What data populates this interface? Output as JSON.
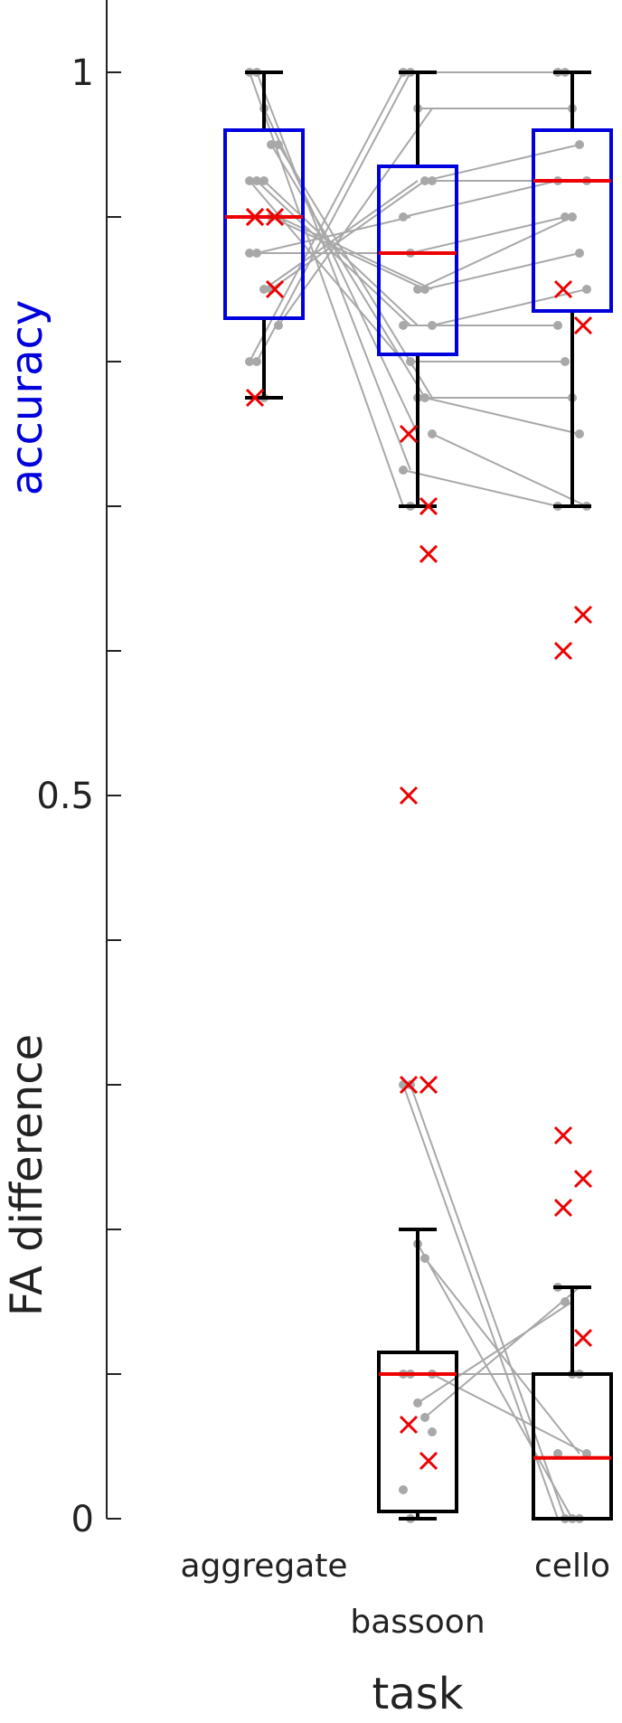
{
  "chart_data": {
    "type": "box",
    "xlabel": "task",
    "ylabel_top": "accuracy",
    "ylabel_bottom": "FA difference",
    "categories": [
      "aggregate",
      "bassoon",
      "cello"
    ],
    "ylim": [
      0,
      1.05
    ],
    "yticks": [
      0,
      0.1,
      0.2,
      0.3,
      0.4,
      0.5,
      0.6,
      0.7,
      0.8,
      0.9,
      1
    ],
    "ytick_labels": [
      "0",
      "",
      "",
      "",
      "",
      "0.5",
      "",
      "",
      "",
      "",
      "1"
    ],
    "colors": {
      "accuracy": "#0000dd",
      "fa": "#000000",
      "median": "#ee0000",
      "marker": "#ee0000",
      "point": "#a8a8a8",
      "line": "#a8a8a8"
    },
    "accuracy_boxes": [
      {
        "category": "aggregate",
        "whisker_low": 0.775,
        "q1": 0.83,
        "median": 0.9,
        "q3": 0.96,
        "whisker_high": 1.0
      },
      {
        "category": "bassoon",
        "whisker_low": 0.7,
        "q1": 0.805,
        "median": 0.875,
        "q3": 0.935,
        "whisker_high": 1.0
      },
      {
        "category": "cello",
        "whisker_low": 0.7,
        "q1": 0.835,
        "median": 0.925,
        "q3": 0.96,
        "whisker_high": 1.0
      }
    ],
    "fa_boxes": [
      {
        "category": "bassoon",
        "whisker_low": 0.0,
        "q1": 0.005,
        "median": 0.1,
        "q3": 0.115,
        "whisker_high": 0.2
      },
      {
        "category": "cello",
        "whisker_low": 0.0,
        "q1": 0.0,
        "median": 0.042,
        "q3": 0.1,
        "whisker_high": 0.16
      }
    ],
    "accuracy_points": {
      "aggregate": [
        1.0,
        1.0,
        0.975,
        0.95,
        0.95,
        0.925,
        0.925,
        0.925,
        0.9,
        0.9,
        0.875,
        0.875,
        0.85,
        0.85,
        0.825,
        0.8,
        0.8,
        0.775
      ],
      "bassoon": [
        1.0,
        1.0,
        0.975,
        0.925,
        0.925,
        0.9,
        0.875,
        0.85,
        0.85,
        0.825,
        0.825,
        0.8,
        0.775,
        0.775,
        0.75,
        0.725,
        0.7
      ],
      "cello": [
        1.0,
        1.0,
        0.975,
        0.95,
        0.925,
        0.925,
        0.9,
        0.9,
        0.875,
        0.85,
        0.825,
        0.8,
        0.775,
        0.75,
        0.7,
        0.7
      ]
    },
    "accuracy_outlier_markers": {
      "aggregate": [
        0.9,
        0.9,
        0.9,
        0.85,
        0.775
      ],
      "bassoon": [
        0.75,
        0.667,
        0.5,
        0.7
      ],
      "cello": [
        0.85,
        0.825,
        0.6,
        0.625
      ]
    },
    "fa_points": {
      "bassoon": [
        0.3,
        0.3,
        0.19,
        0.18,
        0.1,
        0.1,
        0.1,
        0.08,
        0.07,
        0.06,
        0.02,
        0.0
      ],
      "cello": [
        0.16,
        0.15,
        0.1,
        0.1,
        0.045,
        0.045,
        0.0,
        0.0,
        0.0
      ]
    },
    "fa_outlier_markers": {
      "bassoon": [
        0.3,
        0.3,
        0.065,
        0.04
      ],
      "cello": [
        0.265,
        0.235,
        0.215,
        0.125
      ]
    }
  }
}
